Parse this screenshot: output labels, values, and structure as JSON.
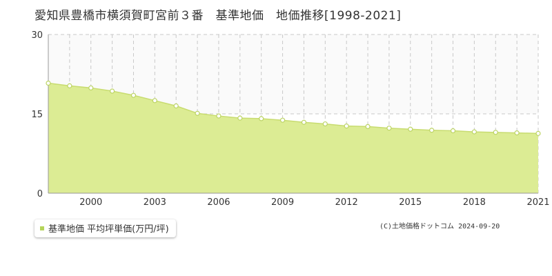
{
  "title": "愛知県豊橋市横須賀町宮前３番　基準地価　地価推移[1998-2021]",
  "legend": {
    "label": "基準地価 平均坪単価(万円/坪)"
  },
  "credit": "(C)土地価格ドットコム 2024-09-20",
  "colors": {
    "fill": "#dcec94",
    "line": "#c8dc70",
    "point_fill": "#ffffff",
    "point_stroke": "#bcd464",
    "grid": "#c8c8c8",
    "axis": "#999999",
    "legend_swatch": "#b5d45a",
    "upper_band": "#fafafa"
  },
  "chart_data": {
    "type": "area",
    "x": [
      1998,
      1999,
      2000,
      2001,
      2002,
      2003,
      2004,
      2005,
      2006,
      2007,
      2008,
      2009,
      2010,
      2011,
      2012,
      2013,
      2014,
      2015,
      2016,
      2017,
      2018,
      2019,
      2020,
      2021
    ],
    "series": [
      {
        "name": "基準地価 平均坪単価(万円/坪)",
        "values": [
          20.8,
          20.3,
          19.9,
          19.3,
          18.5,
          17.5,
          16.5,
          15.1,
          14.6,
          14.2,
          14.1,
          13.8,
          13.4,
          13.1,
          12.7,
          12.6,
          12.3,
          12.1,
          11.9,
          11.8,
          11.6,
          11.5,
          11.4,
          11.3
        ]
      }
    ],
    "xticks": [
      2000,
      2003,
      2006,
      2009,
      2012,
      2015,
      2018,
      2021
    ],
    "yticks": [
      0,
      15,
      30
    ],
    "xlim": [
      1998,
      2021
    ],
    "ylim": [
      0,
      30
    ],
    "grid": true,
    "legend_position": "bottom-left"
  }
}
